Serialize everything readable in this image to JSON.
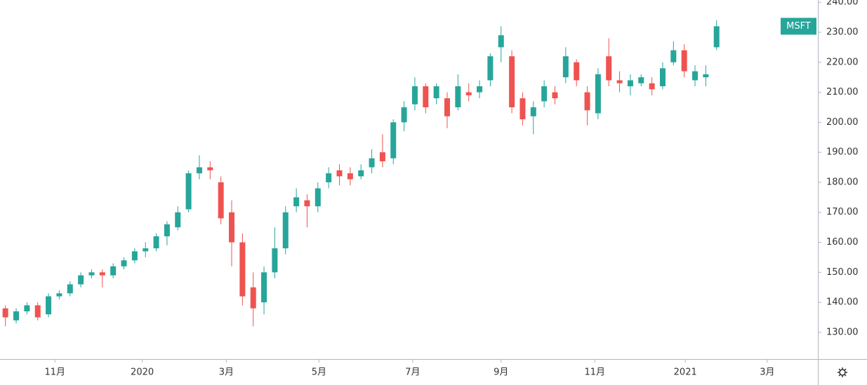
{
  "chart_data": {
    "type": "candlestick",
    "name": "MSFT",
    "up_color": "#26a69a",
    "down_color": "#ef5350",
    "xlim": [
      0,
      75.9
    ],
    "xticks": [
      {
        "value": 5.1,
        "label": "11月"
      },
      {
        "value": 13.2,
        "label": "2020"
      },
      {
        "value": 21.0,
        "label": "3月"
      },
      {
        "value": 29.6,
        "label": "5月"
      },
      {
        "value": 38.3,
        "label": "7月"
      },
      {
        "value": 46.5,
        "label": "9月"
      },
      {
        "value": 55.2,
        "label": "11月"
      },
      {
        "value": 63.6,
        "label": "2021"
      },
      {
        "value": 71.2,
        "label": "3月"
      }
    ],
    "ylim": [
      121.1,
      240.75
    ],
    "yticks": [
      {
        "value": 130,
        "label": "130.00"
      },
      {
        "value": 140,
        "label": "140.00"
      },
      {
        "value": 150,
        "label": "150.00"
      },
      {
        "value": 160,
        "label": "160.00"
      },
      {
        "value": 170,
        "label": "170.00"
      },
      {
        "value": 180,
        "label": "180.00"
      },
      {
        "value": 190,
        "label": "190.00"
      },
      {
        "value": 200,
        "label": "200.00"
      },
      {
        "value": 210,
        "label": "210.00"
      },
      {
        "value": 220,
        "label": "220.00"
      },
      {
        "value": 230,
        "label": "230.00"
      },
      {
        "value": 240,
        "label": "240.00"
      }
    ],
    "open": [
      138,
      134,
      137,
      139,
      136,
      142,
      143,
      146,
      149,
      150,
      149,
      152,
      154,
      157,
      158,
      162,
      165,
      171,
      183,
      185,
      180,
      170,
      160,
      145,
      140,
      150,
      158,
      172,
      174,
      172,
      180,
      184,
      183,
      182,
      185,
      190,
      188,
      200,
      206,
      212,
      208,
      208,
      205,
      210,
      210,
      214,
      225,
      222,
      208,
      202,
      207,
      210,
      215,
      220,
      210,
      203,
      222,
      214,
      212,
      213,
      213,
      212,
      220,
      224,
      214,
      215,
      225
    ],
    "high": [
      139,
      138,
      140,
      140,
      143,
      144,
      147,
      150,
      151,
      151,
      153,
      155,
      158,
      160,
      163,
      167,
      172,
      184,
      189,
      187,
      182,
      174,
      163,
      150,
      152,
      165,
      172,
      178,
      176,
      180,
      185,
      186,
      185,
      186,
      191,
      196,
      201,
      207,
      215,
      213,
      213,
      210,
      216,
      213,
      214,
      223,
      232,
      224,
      210,
      207,
      214,
      212,
      225,
      221,
      212,
      218,
      228,
      217,
      216,
      216,
      215,
      220,
      227,
      226,
      219,
      219,
      234
    ],
    "low": [
      132,
      133,
      136,
      134,
      135,
      141,
      142,
      145,
      148,
      145,
      148,
      151,
      153,
      155,
      157,
      159,
      164,
      170,
      181,
      181,
      166,
      152,
      139,
      132,
      136,
      148,
      156,
      170,
      165,
      170,
      178,
      179,
      179,
      181,
      183,
      185,
      186,
      197,
      204,
      203,
      206,
      198,
      204,
      207,
      208,
      212,
      220,
      203,
      199,
      196,
      205,
      206,
      213,
      212,
      199,
      201,
      212,
      210,
      209,
      212,
      209,
      211,
      219,
      215,
      212,
      212,
      224
    ],
    "close": [
      135,
      137,
      139,
      135,
      142,
      143,
      146,
      149,
      150,
      149,
      152,
      154,
      157,
      158,
      162,
      166,
      170,
      183,
      185,
      184,
      168,
      160,
      142,
      138,
      150,
      158,
      170,
      175,
      172,
      178,
      183,
      182,
      181,
      184,
      188,
      187,
      200,
      205,
      212,
      205,
      212,
      202,
      212,
      209,
      212,
      222,
      229,
      205,
      201,
      205,
      212,
      208,
      222,
      214,
      204,
      216,
      214,
      213,
      214,
      215,
      211,
      218,
      224,
      217,
      217,
      216,
      232
    ]
  }
}
